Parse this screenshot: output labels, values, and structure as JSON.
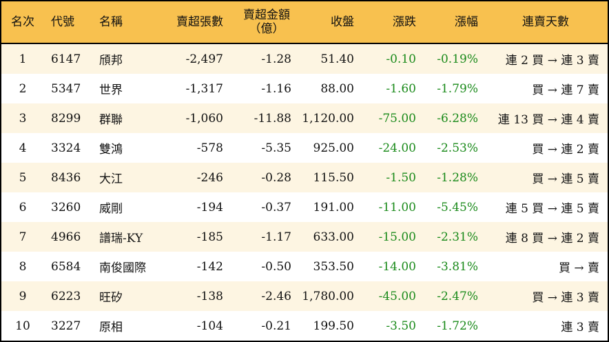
{
  "headers": {
    "rank": "名次",
    "code": "代號",
    "name": "名稱",
    "net_sell_lots": "賣超張數",
    "net_sell_amount_1": "賣超金額",
    "net_sell_amount_2": "（億）",
    "close": "收盤",
    "change": "漲跌",
    "change_pct": "漲幅",
    "streak": "連賣天數"
  },
  "colors": {
    "header_bg": "#f8c14f",
    "odd_row_bg": "#fdf5e2",
    "negative": "#1a8a1a"
  },
  "rows": [
    {
      "rank": "1",
      "code": "6147",
      "name": "頎邦",
      "lots": "-2,497",
      "amount": "-1.28",
      "close": "51.40",
      "change": "-0.10",
      "pct": "-0.19%",
      "streak": "連 2 買 → 連 3 賣"
    },
    {
      "rank": "2",
      "code": "5347",
      "name": "世界",
      "lots": "-1,317",
      "amount": "-1.16",
      "close": "88.00",
      "change": "-1.60",
      "pct": "-1.79%",
      "streak": "買 → 連 7 賣"
    },
    {
      "rank": "3",
      "code": "8299",
      "name": "群聯",
      "lots": "-1,060",
      "amount": "-11.88",
      "close": "1,120.00",
      "change": "-75.00",
      "pct": "-6.28%",
      "streak": "連 13 買 → 連 4 賣"
    },
    {
      "rank": "4",
      "code": "3324",
      "name": "雙鴻",
      "lots": "-578",
      "amount": "-5.35",
      "close": "925.00",
      "change": "-24.00",
      "pct": "-2.53%",
      "streak": "買 → 連 2 賣"
    },
    {
      "rank": "5",
      "code": "8436",
      "name": "大江",
      "lots": "-246",
      "amount": "-0.28",
      "close": "115.50",
      "change": "-1.50",
      "pct": "-1.28%",
      "streak": "買 → 連 5 賣"
    },
    {
      "rank": "6",
      "code": "3260",
      "name": "威剛",
      "lots": "-194",
      "amount": "-0.37",
      "close": "191.00",
      "change": "-11.00",
      "pct": "-5.45%",
      "streak": "連 5 買 → 連 5 賣"
    },
    {
      "rank": "7",
      "code": "4966",
      "name": "譜瑞-KY",
      "lots": "-185",
      "amount": "-1.17",
      "close": "633.00",
      "change": "-15.00",
      "pct": "-2.31%",
      "streak": "連 8 買 → 連 2 賣"
    },
    {
      "rank": "8",
      "code": "6584",
      "name": "南俊國際",
      "lots": "-142",
      "amount": "-0.50",
      "close": "353.50",
      "change": "-14.00",
      "pct": "-3.81%",
      "streak": "買 → 賣"
    },
    {
      "rank": "9",
      "code": "6223",
      "name": "旺矽",
      "lots": "-138",
      "amount": "-2.46",
      "close": "1,780.00",
      "change": "-45.00",
      "pct": "-2.47%",
      "streak": "買 → 連 3 賣"
    },
    {
      "rank": "10",
      "code": "3227",
      "name": "原相",
      "lots": "-104",
      "amount": "-0.21",
      "close": "199.50",
      "change": "-3.50",
      "pct": "-1.72%",
      "streak": "連 3 賣"
    }
  ]
}
